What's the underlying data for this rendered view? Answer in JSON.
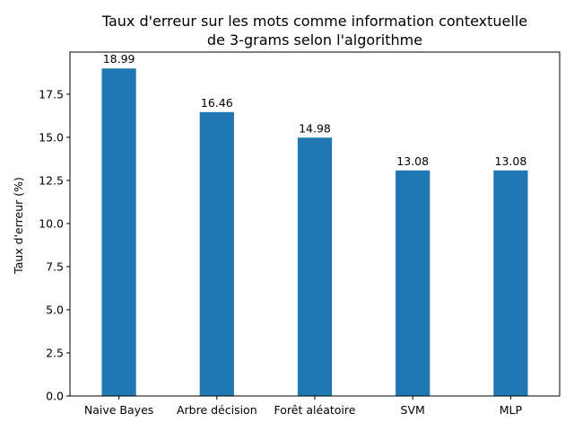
{
  "chart_data": {
    "type": "bar",
    "title_lines": [
      "Taux d'erreur sur les mots comme information contextuelle",
      "de 3-grams selon l'algorithme"
    ],
    "xlabel": "",
    "ylabel": "Taux d'erreur (%)",
    "categories": [
      "Naive Bayes",
      "Arbre décision",
      "Forêt aléatoire",
      "SVM",
      "MLP"
    ],
    "values": [
      18.99,
      16.46,
      14.98,
      13.08,
      13.08
    ],
    "data_labels": [
      "18.99",
      "16.46",
      "14.98",
      "13.08",
      "13.08"
    ],
    "ylim": [
      0,
      19.94
    ],
    "yticks": [
      0.0,
      2.5,
      5.0,
      7.5,
      10.0,
      12.5,
      15.0,
      17.5
    ],
    "ytick_labels": [
      "0.0",
      "2.5",
      "5.0",
      "7.5",
      "10.0",
      "12.5",
      "15.0",
      "17.5"
    ],
    "bar_color": "#1f77b4",
    "grid": false
  }
}
